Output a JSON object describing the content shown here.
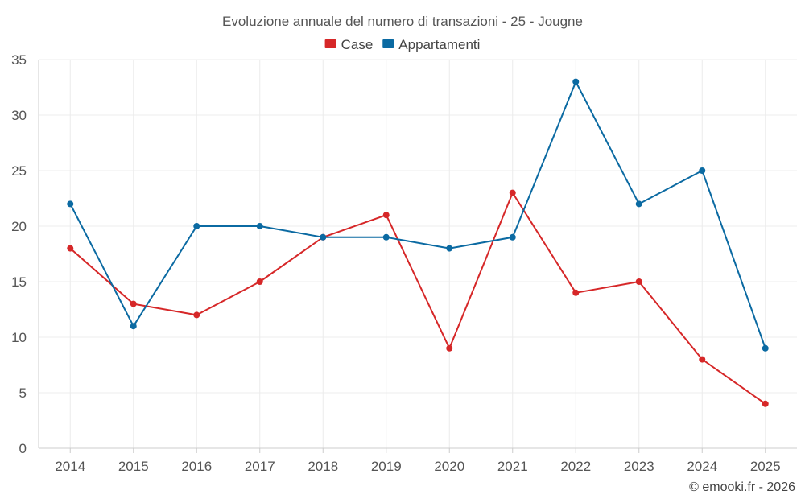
{
  "chart_data": {
    "type": "line",
    "title": "Evoluzione annuale del numero di transazioni - 25 - Jougne",
    "categories": [
      "2014",
      "2015",
      "2016",
      "2017",
      "2018",
      "2019",
      "2020",
      "2021",
      "2022",
      "2023",
      "2024",
      "2025"
    ],
    "series": [
      {
        "name": "Case",
        "color": "#d62728",
        "values": [
          18,
          13,
          12,
          15,
          19,
          21,
          9,
          23,
          14,
          15,
          8,
          4
        ]
      },
      {
        "name": "Appartamenti",
        "color": "#0b6aa2",
        "values": [
          22,
          11,
          20,
          20,
          19,
          19,
          18,
          19,
          33,
          22,
          25,
          9
        ]
      }
    ],
    "ylim": [
      0,
      35
    ],
    "yticks": [
      0,
      5,
      10,
      15,
      20,
      25,
      30,
      35
    ],
    "xlabel": "",
    "ylabel": "",
    "grid": true,
    "legend": "top-center"
  },
  "credit": "© emooki.fr - 2026"
}
